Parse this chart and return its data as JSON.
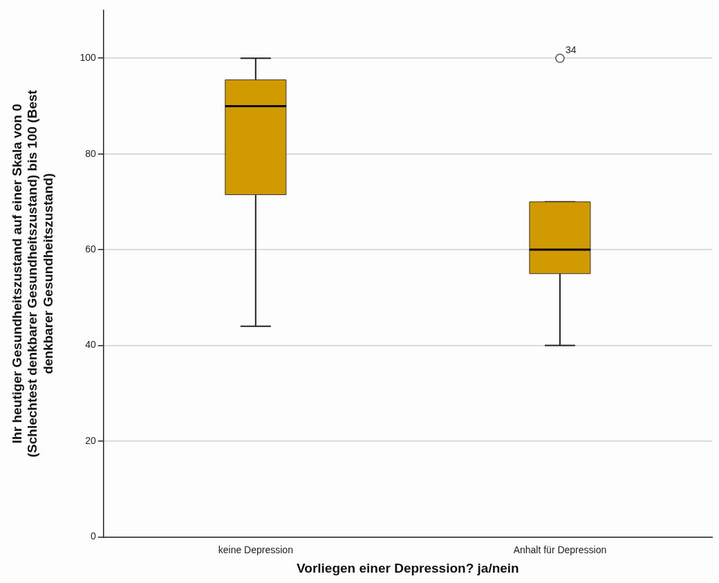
{
  "chart_data": {
    "type": "box",
    "xlabel": "Vorliegen einer Depression? ja/nein",
    "ylabel": "Ihr heutiger Gesundheitszustand auf einer Skala von 0 (Schlechtest denkbarer Gesundheitszustand) bis 100 (Best denkbarer Gesundheitszustand)",
    "categories": [
      "keine Depression",
      "Anhalt für Depression"
    ],
    "color": "#d09a00",
    "boxes": [
      {
        "low": 44,
        "q1": 71.5,
        "median": 90,
        "q3": 95.5,
        "high": 100
      },
      {
        "low": 40,
        "q1": 55,
        "median": 60,
        "q3": 70,
        "high": 70,
        "outliers": [
          100
        ]
      }
    ],
    "annotations": [
      "34"
    ],
    "ylim": [
      0,
      110
    ],
    "yticks": [
      0,
      20,
      40,
      60,
      80,
      100
    ],
    "grid": "y",
    "legend": false
  }
}
